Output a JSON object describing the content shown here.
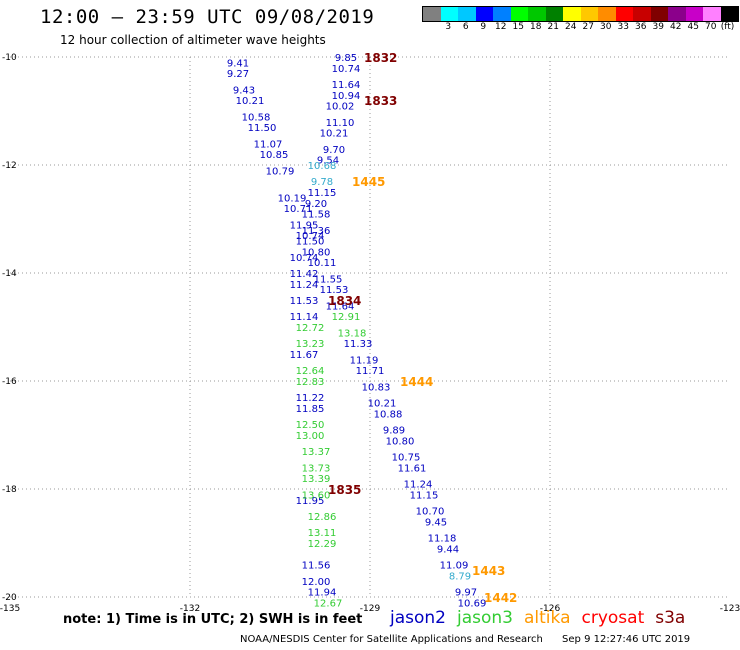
{
  "header": {
    "title": "12:00 — 23:59 UTC 09/08/2019",
    "subtitle": "12 hour collection of altimeter wave heights"
  },
  "legend": {
    "unit": "(ft)",
    "bins": [
      {
        "label": "",
        "color": "#808080"
      },
      {
        "label": "3",
        "color": "#00ffff"
      },
      {
        "label": "6",
        "color": "#00c8ff"
      },
      {
        "label": "9",
        "color": "#0000ff"
      },
      {
        "label": "12",
        "color": "#0080ff"
      },
      {
        "label": "15",
        "color": "#00ff00"
      },
      {
        "label": "18",
        "color": "#00c800"
      },
      {
        "label": "21",
        "color": "#008000"
      },
      {
        "label": "24",
        "color": "#ffff00"
      },
      {
        "label": "27",
        "color": "#ffc800"
      },
      {
        "label": "30",
        "color": "#ff8c00"
      },
      {
        "label": "33",
        "color": "#ff0000"
      },
      {
        "label": "36",
        "color": "#c80000"
      },
      {
        "label": "39",
        "color": "#800000"
      },
      {
        "label": "42",
        "color": "#8b008b"
      },
      {
        "label": "45",
        "color": "#c800c8"
      },
      {
        "label": "70",
        "color": "#ff80ff"
      },
      {
        "label": "",
        "color": "#000000"
      }
    ]
  },
  "colors": {
    "jason2": "#0000c0",
    "jason3": "#33cc33",
    "altika": "#ff9900",
    "cryosat": "#ff0000",
    "s3a": "#800000",
    "light_blue": "#33aacc"
  },
  "notes": {
    "note": "note:  1) Time is in UTC; 2) SWH is in feet",
    "footer_org": "NOAA/NESDIS Center for Satellite Applications and Research",
    "footer_time": "Sep  9 12:27:46 UTC 2019"
  },
  "satellites": [
    {
      "name": "jason2",
      "color": "#0000c0"
    },
    {
      "name": "jason3",
      "color": "#33cc33"
    },
    {
      "name": "altika",
      "color": "#ff9900"
    },
    {
      "name": "cryosat",
      "color": "#ff0000"
    },
    {
      "name": "s3a",
      "color": "#800000"
    }
  ],
  "chart_data": {
    "type": "scatter",
    "xlim": [
      -135,
      -123
    ],
    "ylim": [
      -20,
      -10
    ],
    "x_ticks": [
      "-135",
      "-132",
      "-129",
      "-126",
      "-123"
    ],
    "y_ticks": [
      "-10",
      "-12",
      "-14",
      "-16",
      "-18",
      "-20"
    ],
    "grid": true,
    "series": [
      {
        "name": "jason2",
        "color": "#0000c0",
        "points": [
          [
            -131.2,
            -10.1,
            "9.41"
          ],
          [
            -131.2,
            -10.3,
            "9.27"
          ],
          [
            -131.1,
            -10.6,
            "9.43"
          ],
          [
            -131.0,
            -10.8,
            "10.21"
          ],
          [
            -130.9,
            -11.1,
            "10.58"
          ],
          [
            -130.8,
            -11.3,
            "11.50"
          ],
          [
            -130.7,
            -11.6,
            "11.07"
          ],
          [
            -130.6,
            -11.8,
            "10.85"
          ],
          [
            -130.5,
            -12.1,
            "10.79"
          ],
          [
            -130.3,
            -12.6,
            "10.19"
          ],
          [
            -130.2,
            -12.8,
            "10.71"
          ],
          [
            -130.1,
            -13.1,
            "11.95"
          ],
          [
            -130.0,
            -13.3,
            "10.74"
          ],
          [
            -129.9,
            -13.6,
            "10.80"
          ],
          [
            -129.8,
            -13.8,
            "10.11"
          ],
          [
            -129.7,
            -14.1,
            "11.55"
          ],
          [
            -129.6,
            -14.3,
            "11.53"
          ],
          [
            -129.5,
            -14.6,
            "11.64"
          ],
          [
            -129.2,
            -15.3,
            "11.33"
          ],
          [
            -129.1,
            -15.6,
            "11.19"
          ],
          [
            -129.0,
            -15.8,
            "11.71"
          ],
          [
            -128.9,
            -16.1,
            "10.83"
          ],
          [
            -128.8,
            -16.4,
            "10.21"
          ],
          [
            -128.7,
            -16.6,
            "10.88"
          ],
          [
            -128.6,
            -16.9,
            "9.89"
          ],
          [
            -128.5,
            -17.1,
            "10.80"
          ],
          [
            -128.4,
            -17.4,
            "10.75"
          ],
          [
            -128.3,
            -17.6,
            "11.61"
          ],
          [
            -128.2,
            -17.9,
            "11.24"
          ],
          [
            -128.1,
            -18.1,
            "11.15"
          ],
          [
            -128.0,
            -18.4,
            "10.70"
          ],
          [
            -127.9,
            -18.6,
            "9.45"
          ],
          [
            -127.8,
            -18.9,
            "11.18"
          ],
          [
            -127.7,
            -19.1,
            "9.44"
          ],
          [
            -127.6,
            -19.4,
            "11.09"
          ],
          [
            -127.4,
            -19.9,
            "9.97"
          ],
          [
            -127.3,
            -20.1,
            "10.69"
          ],
          [
            -129.4,
            -10.0,
            "9.85"
          ],
          [
            -129.4,
            -10.2,
            "10.74"
          ],
          [
            -129.4,
            -10.5,
            "11.64"
          ],
          [
            -129.4,
            -10.7,
            "10.94"
          ],
          [
            -129.5,
            -10.9,
            "10.02"
          ],
          [
            -129.5,
            -11.2,
            "11.10"
          ],
          [
            -129.6,
            -11.4,
            "10.21"
          ],
          [
            -129.6,
            -11.7,
            "9.70"
          ],
          [
            -129.7,
            -11.9,
            "9.54"
          ],
          [
            -129.8,
            -12.5,
            "11.15"
          ],
          [
            -129.9,
            -12.7,
            "9.20"
          ],
          [
            -129.9,
            -12.9,
            "11.58"
          ],
          [
            -129.9,
            -13.2,
            "11.36"
          ],
          [
            -130.0,
            -13.4,
            "11.50"
          ],
          [
            -130.1,
            -13.7,
            "10.74"
          ],
          [
            -130.1,
            -14.0,
            "11.42"
          ],
          [
            -130.1,
            -14.2,
            "11.24"
          ],
          [
            -130.1,
            -14.5,
            "11.53"
          ],
          [
            -130.1,
            -14.8,
            "11.14"
          ],
          [
            -130.1,
            -15.5,
            "11.67"
          ],
          [
            -130.0,
            -16.3,
            "11.22"
          ],
          [
            -130.0,
            -16.5,
            "11.85"
          ],
          [
            -130.0,
            -18.2,
            "11.95"
          ],
          [
            -129.9,
            -19.4,
            "11.56"
          ],
          [
            -129.9,
            -19.7,
            "12.00"
          ],
          [
            -129.8,
            -19.9,
            "11.94"
          ]
        ]
      },
      {
        "name": "jason3",
        "color": "#33cc33",
        "points": [
          [
            -129.4,
            -14.8,
            "12.91"
          ],
          [
            -129.3,
            -15.1,
            "13.18"
          ],
          [
            -130.0,
            -15.0,
            "12.72"
          ],
          [
            -130.0,
            -15.3,
            "13.23"
          ],
          [
            -130.0,
            -15.8,
            "12.64"
          ],
          [
            -130.0,
            -16.0,
            "12.83"
          ],
          [
            -130.0,
            -16.8,
            "12.50"
          ],
          [
            -130.0,
            -17.0,
            "13.00"
          ],
          [
            -129.9,
            -17.3,
            "13.37"
          ],
          [
            -129.9,
            -17.6,
            "13.73"
          ],
          [
            -129.9,
            -17.8,
            "13.39"
          ],
          [
            -129.9,
            -18.1,
            "13.60"
          ],
          [
            -129.8,
            -18.5,
            "12.86"
          ],
          [
            -129.8,
            -18.8,
            "13.11"
          ],
          [
            -129.8,
            -19.0,
            "12.29"
          ],
          [
            -129.7,
            -20.1,
            "12.67"
          ]
        ]
      },
      {
        "name": "light-blue",
        "color": "#33aacc",
        "points": [
          [
            -129.8,
            -12.0,
            "10.68"
          ],
          [
            -129.8,
            -12.3,
            "9.78"
          ],
          [
            -127.5,
            -19.6,
            "8.79"
          ]
        ]
      }
    ],
    "annotations": [
      {
        "x": -129.1,
        "y": -10.0,
        "text": "1832",
        "color": "#800000"
      },
      {
        "x": -129.1,
        "y": -10.8,
        "text": "1833",
        "color": "#800000"
      },
      {
        "x": -129.3,
        "y": -12.3,
        "text": "1445",
        "color": "#ff9900"
      },
      {
        "x": -129.7,
        "y": -14.5,
        "text": "1834",
        "color": "#800000"
      },
      {
        "x": -128.5,
        "y": -16.0,
        "text": "1444",
        "color": "#ff9900"
      },
      {
        "x": -129.7,
        "y": -18.0,
        "text": "1835",
        "color": "#800000"
      },
      {
        "x": -127.3,
        "y": -19.5,
        "text": "1443",
        "color": "#ff9900"
      },
      {
        "x": -127.1,
        "y": -20.0,
        "text": "1442",
        "color": "#ff9900"
      }
    ]
  }
}
